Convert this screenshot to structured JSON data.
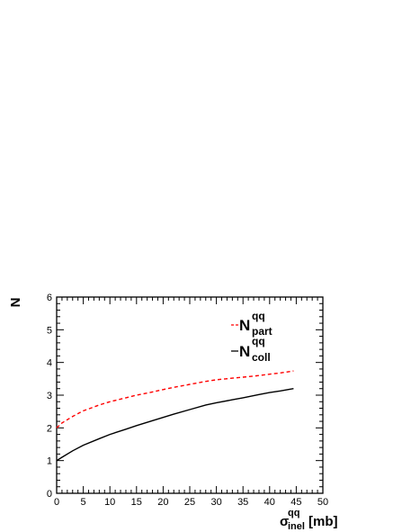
{
  "chart_data": {
    "type": "line",
    "title": "",
    "xlabel": {
      "main": "σ",
      "sup": "qq",
      "sub": "inel",
      "unit": "[mb]"
    },
    "ylabel": "N",
    "xlim": [
      0,
      50
    ],
    "ylim": [
      0,
      6
    ],
    "x_ticks": [
      "0",
      "5",
      "10",
      "15",
      "20",
      "25",
      "30",
      "35",
      "40",
      "45",
      "50"
    ],
    "y_ticks": [
      "0",
      "1",
      "2",
      "3",
      "4",
      "5",
      "6"
    ],
    "grid": false,
    "legend_position": "top-right",
    "series": [
      {
        "name": "N_part^qq",
        "legend": {
          "main": "N",
          "sup": "qq",
          "sub": "part"
        },
        "color": "#ff0000",
        "dash": "dashed",
        "x": [
          0,
          1,
          3,
          5,
          8,
          10,
          13,
          15,
          18,
          20,
          22,
          25,
          28,
          30,
          33,
          35,
          38,
          40,
          42,
          44.5
        ],
        "y": [
          2.0,
          2.15,
          2.35,
          2.52,
          2.7,
          2.8,
          2.92,
          3.0,
          3.1,
          3.17,
          3.24,
          3.33,
          3.42,
          3.47,
          3.52,
          3.55,
          3.6,
          3.64,
          3.68,
          3.74
        ]
      },
      {
        "name": "N_coll^qq",
        "legend": {
          "main": "N",
          "sup": "qq",
          "sub": "coll"
        },
        "color": "#000000",
        "dash": "solid",
        "x": [
          0,
          1,
          3,
          5,
          8,
          10,
          13,
          15,
          18,
          20,
          22,
          25,
          28,
          30,
          33,
          35,
          38,
          40,
          42,
          44.5
        ],
        "y": [
          1.0,
          1.1,
          1.3,
          1.47,
          1.67,
          1.8,
          1.96,
          2.07,
          2.22,
          2.32,
          2.42,
          2.56,
          2.7,
          2.77,
          2.86,
          2.92,
          3.02,
          3.08,
          3.13,
          3.2
        ]
      }
    ]
  }
}
